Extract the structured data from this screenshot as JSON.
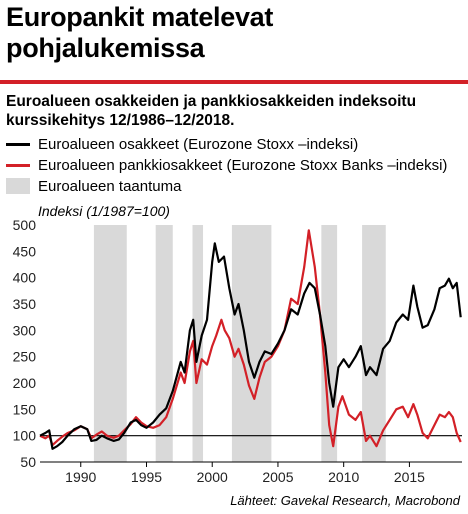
{
  "title": "Europankit matelevat pohjalukemissa",
  "subtitle": "Euroalueen osakkeiden ja pankkiosakkeiden indeksoitu kurssikehitys 12/1986–12/2018.",
  "legend": [
    {
      "label": "Euroalueen osakkeet (Eurozone Stoxx –indeksi)",
      "kind": "line",
      "color": "#000000"
    },
    {
      "label": "Euroalueen pankkiosakkeet (Eurozone Stoxx Banks –indeksi)",
      "kind": "line",
      "color": "#d32027"
    },
    {
      "label": "Euroalueen taantuma",
      "kind": "band",
      "color": "#d9d9d9"
    }
  ],
  "source": "Lähteet: Gavekal Research, Macrobond",
  "chart_data": {
    "type": "line",
    "ylabel": "Indeksi (1/1987=100)",
    "ylim": [
      50,
      500
    ],
    "xlim": [
      1986.9,
      2019.0
    ],
    "yticks": [
      50,
      100,
      150,
      200,
      250,
      300,
      350,
      400,
      450,
      500
    ],
    "xticks": [
      1990,
      1995,
      2000,
      2005,
      2010,
      2015
    ],
    "reference_line": 100,
    "grid": false,
    "recessions": [
      [
        1991.0,
        1993.5
      ],
      [
        1995.7,
        1997.0
      ],
      [
        1998.5,
        1999.3
      ],
      [
        2001.5,
        2004.5
      ],
      [
        2008.3,
        2009.5
      ],
      [
        2011.4,
        2013.2
      ]
    ],
    "series": [
      {
        "name": "Euroalueen osakkeet (Eurozone Stoxx –indeksi)",
        "color": "#000000",
        "points": [
          [
            1986.9,
            100
          ],
          [
            1987.3,
            105
          ],
          [
            1987.6,
            110
          ],
          [
            1987.85,
            75
          ],
          [
            1988.2,
            80
          ],
          [
            1988.6,
            88
          ],
          [
            1989.0,
            100
          ],
          [
            1989.5,
            112
          ],
          [
            1990.0,
            118
          ],
          [
            1990.5,
            112
          ],
          [
            1990.8,
            90
          ],
          [
            1991.2,
            92
          ],
          [
            1991.6,
            100
          ],
          [
            1992.0,
            95
          ],
          [
            1992.5,
            90
          ],
          [
            1992.9,
            93
          ],
          [
            1993.3,
            105
          ],
          [
            1993.8,
            125
          ],
          [
            1994.2,
            130
          ],
          [
            1994.6,
            120
          ],
          [
            1995.0,
            115
          ],
          [
            1995.5,
            125
          ],
          [
            1996.0,
            140
          ],
          [
            1996.5,
            152
          ],
          [
            1997.0,
            185
          ],
          [
            1997.6,
            240
          ],
          [
            1997.9,
            220
          ],
          [
            1998.3,
            300
          ],
          [
            1998.55,
            320
          ],
          [
            1998.8,
            240
          ],
          [
            1999.2,
            290
          ],
          [
            1999.6,
            320
          ],
          [
            2000.0,
            430
          ],
          [
            2000.2,
            465
          ],
          [
            2000.5,
            430
          ],
          [
            2000.9,
            440
          ],
          [
            2001.3,
            380
          ],
          [
            2001.7,
            330
          ],
          [
            2002.0,
            350
          ],
          [
            2002.4,
            300
          ],
          [
            2002.8,
            240
          ],
          [
            2003.2,
            210
          ],
          [
            2003.6,
            240
          ],
          [
            2004.0,
            260
          ],
          [
            2004.5,
            255
          ],
          [
            2005.0,
            275
          ],
          [
            2005.5,
            300
          ],
          [
            2006.0,
            340
          ],
          [
            2006.5,
            330
          ],
          [
            2007.0,
            370
          ],
          [
            2007.4,
            390
          ],
          [
            2007.8,
            380
          ],
          [
            2008.2,
            330
          ],
          [
            2008.6,
            270
          ],
          [
            2008.9,
            200
          ],
          [
            2009.2,
            155
          ],
          [
            2009.6,
            230
          ],
          [
            2010.0,
            245
          ],
          [
            2010.4,
            230
          ],
          [
            2010.9,
            250
          ],
          [
            2011.3,
            270
          ],
          [
            2011.7,
            215
          ],
          [
            2012.0,
            230
          ],
          [
            2012.5,
            215
          ],
          [
            2013.0,
            265
          ],
          [
            2013.5,
            280
          ],
          [
            2014.0,
            315
          ],
          [
            2014.5,
            330
          ],
          [
            2014.9,
            320
          ],
          [
            2015.3,
            385
          ],
          [
            2015.6,
            345
          ],
          [
            2016.0,
            305
          ],
          [
            2016.4,
            310
          ],
          [
            2016.9,
            340
          ],
          [
            2017.3,
            380
          ],
          [
            2017.7,
            385
          ],
          [
            2018.0,
            398
          ],
          [
            2018.3,
            380
          ],
          [
            2018.6,
            390
          ],
          [
            2018.9,
            325
          ]
        ]
      },
      {
        "name": "Euroalueen pankkiosakkeet (Eurozone Stoxx Banks –indeksi)",
        "color": "#d32027",
        "points": [
          [
            1986.9,
            100
          ],
          [
            1987.3,
            95
          ],
          [
            1987.6,
            100
          ],
          [
            1987.85,
            82
          ],
          [
            1988.2,
            90
          ],
          [
            1988.6,
            98
          ],
          [
            1989.0,
            105
          ],
          [
            1989.5,
            110
          ],
          [
            1990.0,
            118
          ],
          [
            1990.5,
            112
          ],
          [
            1990.8,
            95
          ],
          [
            1991.2,
            102
          ],
          [
            1991.6,
            108
          ],
          [
            1992.0,
            100
          ],
          [
            1992.5,
            96
          ],
          [
            1992.9,
            100
          ],
          [
            1993.3,
            110
          ],
          [
            1993.8,
            122
          ],
          [
            1994.2,
            135
          ],
          [
            1994.6,
            125
          ],
          [
            1995.0,
            118
          ],
          [
            1995.5,
            115
          ],
          [
            1996.0,
            120
          ],
          [
            1996.5,
            135
          ],
          [
            1997.0,
            170
          ],
          [
            1997.6,
            220
          ],
          [
            1997.9,
            200
          ],
          [
            1998.3,
            260
          ],
          [
            1998.55,
            280
          ],
          [
            1998.8,
            200
          ],
          [
            1999.2,
            245
          ],
          [
            1999.6,
            235
          ],
          [
            2000.0,
            270
          ],
          [
            2000.3,
            290
          ],
          [
            2000.7,
            320
          ],
          [
            2000.95,
            300
          ],
          [
            2001.3,
            285
          ],
          [
            2001.7,
            250
          ],
          [
            2002.0,
            265
          ],
          [
            2002.4,
            235
          ],
          [
            2002.8,
            195
          ],
          [
            2003.2,
            170
          ],
          [
            2003.6,
            210
          ],
          [
            2004.0,
            240
          ],
          [
            2004.5,
            250
          ],
          [
            2005.0,
            270
          ],
          [
            2005.5,
            300
          ],
          [
            2006.0,
            360
          ],
          [
            2006.5,
            350
          ],
          [
            2007.0,
            420
          ],
          [
            2007.35,
            490
          ],
          [
            2007.8,
            420
          ],
          [
            2008.2,
            330
          ],
          [
            2008.6,
            220
          ],
          [
            2008.9,
            120
          ],
          [
            2009.2,
            80
          ],
          [
            2009.6,
            155
          ],
          [
            2009.9,
            175
          ],
          [
            2010.4,
            140
          ],
          [
            2010.9,
            130
          ],
          [
            2011.3,
            145
          ],
          [
            2011.7,
            90
          ],
          [
            2012.0,
            100
          ],
          [
            2012.5,
            80
          ],
          [
            2013.0,
            110
          ],
          [
            2013.5,
            130
          ],
          [
            2014.0,
            150
          ],
          [
            2014.5,
            155
          ],
          [
            2014.9,
            135
          ],
          [
            2015.3,
            160
          ],
          [
            2015.6,
            140
          ],
          [
            2016.0,
            105
          ],
          [
            2016.4,
            95
          ],
          [
            2016.9,
            120
          ],
          [
            2017.3,
            140
          ],
          [
            2017.7,
            135
          ],
          [
            2018.0,
            145
          ],
          [
            2018.3,
            135
          ],
          [
            2018.6,
            105
          ],
          [
            2018.9,
            88
          ]
        ]
      }
    ]
  }
}
